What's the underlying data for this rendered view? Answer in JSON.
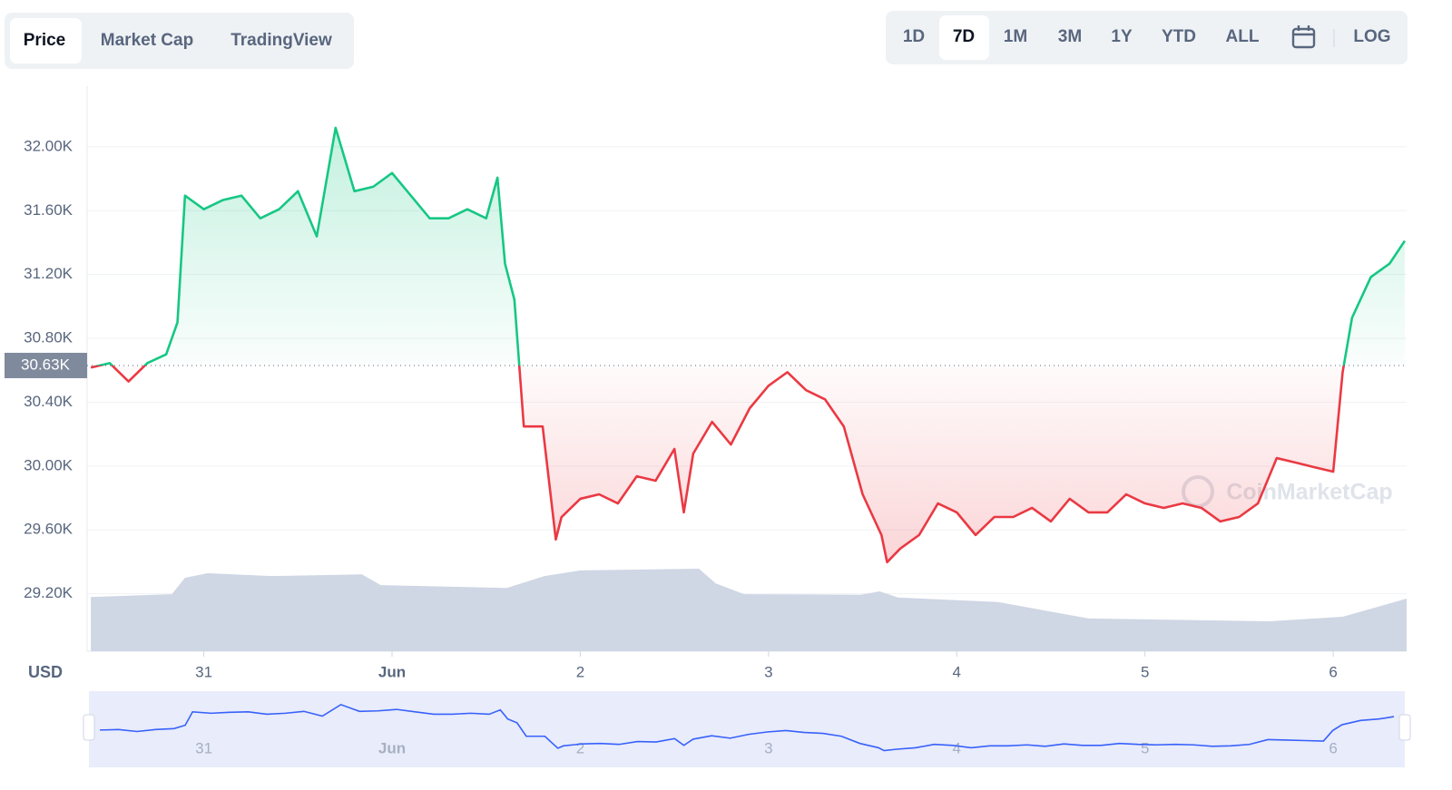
{
  "tabs": [
    "Price",
    "Market Cap",
    "TradingView"
  ],
  "ranges": [
    "1D",
    "7D",
    "1M",
    "3M",
    "1Y",
    "YTD",
    "ALL"
  ],
  "log_button": "LOG",
  "currency": "USD",
  "watermark": "CoinMarketCap",
  "chart_data": {
    "type": "line",
    "x": [
      -0.6,
      -0.5,
      -0.4,
      -0.3,
      -0.2,
      -0.14,
      -0.1,
      0,
      0.1,
      0.2,
      0.3,
      0.4,
      0.5,
      0.6,
      0.7,
      0.8,
      0.9,
      1.0,
      1.1,
      1.2,
      1.3,
      1.4,
      1.5,
      1.56,
      1.6,
      1.65,
      1.7,
      1.8,
      1.87,
      1.9,
      2.0,
      2.1,
      2.2,
      2.3,
      2.4,
      2.5,
      2.55,
      2.6,
      2.7,
      2.8,
      2.9,
      3.0,
      3.1,
      3.2,
      3.3,
      3.4,
      3.5,
      3.6,
      3.63,
      3.7,
      3.8,
      3.9,
      4.0,
      4.1,
      4.2,
      4.3,
      4.4,
      4.5,
      4.6,
      4.7,
      4.8,
      4.9,
      5.0,
      5.1,
      5.2,
      5.3,
      5.4,
      5.5,
      5.6,
      5.7,
      5.8,
      5.9,
      6.0,
      6.05,
      6.1,
      6.2,
      6.3,
      6.38
    ],
    "series": [
      {
        "name": "Price",
        "color_up": "#16c784",
        "color_down": "#ea3943",
        "values": [
          30617,
          30645,
          30530,
          30645,
          30700,
          30900,
          31694,
          31609,
          31666,
          31694,
          31552,
          31609,
          31722,
          31439,
          32119,
          31722,
          31750,
          31836,
          31694,
          31552,
          31552,
          31609,
          31552,
          31807,
          31269,
          31042,
          30248,
          30248,
          29540,
          29680,
          29795,
          29823,
          29766,
          29936,
          29908,
          30107,
          29710,
          30078,
          30277,
          30135,
          30362,
          30503,
          30588,
          30475,
          30418,
          30248,
          29823,
          29568,
          29398,
          29483,
          29568,
          29766,
          29710,
          29568,
          29681,
          29681,
          29738,
          29653,
          29795,
          29710,
          29710,
          29823,
          29766,
          29738,
          29766,
          29738,
          29653,
          29681,
          29766,
          30050,
          30022,
          29993,
          29965,
          30588,
          30929,
          31184,
          31269,
          31411
        ]
      }
    ],
    "volume": {
      "color": "#cfd6e4",
      "x": [
        -0.6,
        -0.17,
        -0.1,
        0.02,
        0.36,
        0.84,
        0.94,
        1.61,
        1.81,
        2.0,
        2.63,
        2.72,
        2.87,
        3.49,
        3.59,
        3.69,
        4.22,
        4.7,
        5.66,
        6.05,
        6.39
      ],
      "values": [
        9.6,
        10.1,
        13.0,
        13.8,
        13.3,
        13.6,
        11.7,
        11.2,
        13.3,
        14.3,
        14.6,
        12.0,
        10.1,
        10.0,
        10.6,
        9.5,
        8.7,
        5.8,
        5.3,
        6.1,
        9.3
      ]
    },
    "y2lim": [
      0,
      100
    ],
    "baseline": {
      "value": 30630,
      "label": "30.63K"
    },
    "xlim": [
      -0.62,
      6.39
    ],
    "xticks": [
      {
        "value": 0,
        "label": "31"
      },
      {
        "value": 1,
        "label": "Jun"
      },
      {
        "value": 2,
        "label": "2"
      },
      {
        "value": 3,
        "label": "3"
      },
      {
        "value": 4,
        "label": "4"
      },
      {
        "value": 5,
        "label": "5"
      },
      {
        "value": 6,
        "label": "6"
      }
    ],
    "ylim": [
      28840,
      32380
    ],
    "yticks": [
      {
        "value": 29200,
        "label": "29.20K"
      },
      {
        "value": 29600,
        "label": "29.60K"
      },
      {
        "value": 30000,
        "label": "30.00K"
      },
      {
        "value": 30400,
        "label": "30.40K"
      },
      {
        "value": 30800,
        "label": "30.80K"
      },
      {
        "value": 31200,
        "label": "31.20K"
      },
      {
        "value": 31600,
        "label": "31.60K"
      },
      {
        "value": 32000,
        "label": "32.00K"
      }
    ],
    "grid": true,
    "navigator_color": "#3861fb"
  }
}
